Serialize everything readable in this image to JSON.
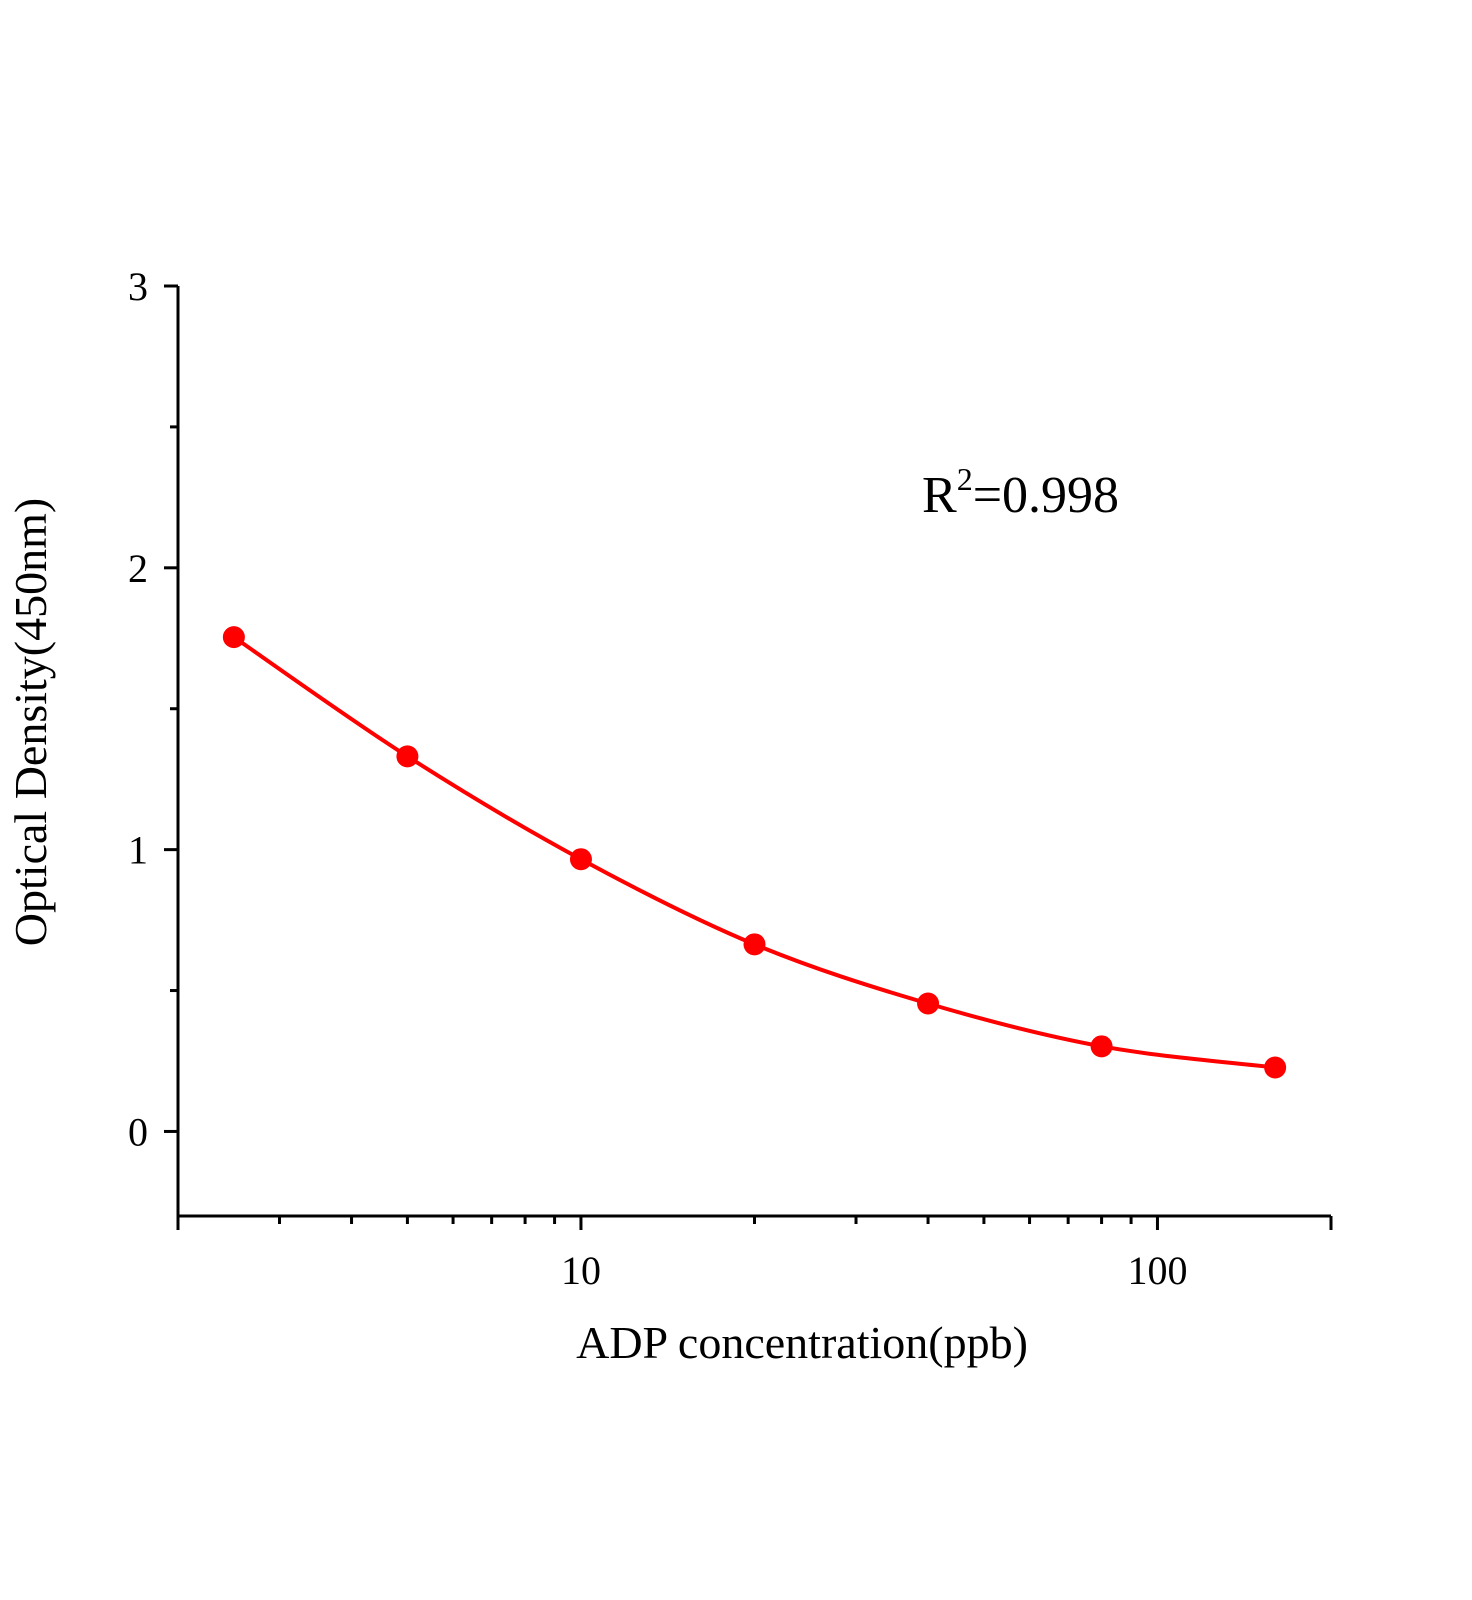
{
  "chart_data": {
    "type": "scatter",
    "title": "",
    "xlabel": "ADP concentration(ppb)",
    "ylabel": "Optical Density(450nm)",
    "x_scale": "log",
    "xlim": [
      2,
      200
    ],
    "ylim": [
      -0.3,
      3
    ],
    "x_ticks": [
      10,
      100
    ],
    "x_tick_labels": [
      "10",
      "100"
    ],
    "y_ticks": [
      0,
      1,
      2,
      3
    ],
    "y_tick_labels": [
      "0",
      "1",
      "2",
      "3"
    ],
    "grid": false,
    "legend": "none",
    "annotation": {
      "base": "R",
      "sup": "2",
      "rest": "=0.998"
    },
    "series": [
      {
        "x": [
          2.5,
          5,
          10,
          20,
          40,
          80,
          160
        ],
        "y": [
          1.754,
          1.331,
          0.966,
          0.664,
          0.454,
          0.302,
          0.227
        ],
        "color": "#ff0000",
        "markers": true,
        "fit_line": true
      }
    ]
  }
}
